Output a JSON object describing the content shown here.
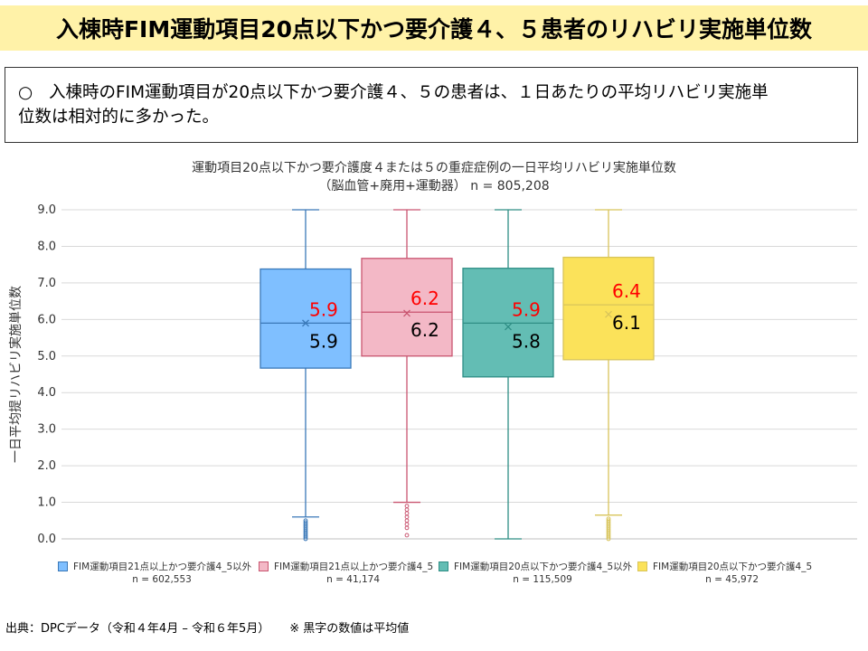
{
  "slide": {
    "title": "入棟時FIM運動項目20点以下かつ要介護４、５患者のリハビリ実施単位数",
    "summary_bullet": "○",
    "summary_line1": "入棟時のFIM運動項目が20点以下かつ要介護４、５の患者は、１日あたりの平均リハビリ実施単",
    "summary_line2": "位数は相対的に多かった。",
    "footer_source": "出典：DPCデータ（令和４年4月 – 令和６年5月）",
    "footer_note": "※ 黒字の数値は平均値"
  },
  "chart_data": {
    "type": "boxplot",
    "title_line1": "運動項目20点以下かつ要介護度４または５の重症症例の一日平均リハビリ実施単位数",
    "title_line2": "（脳血管+廃用+運動器） n = 805,208",
    "ylabel": "一日平均提リハビリ実施単位数",
    "ylim": [
      0,
      9
    ],
    "yticks": [
      "0.0",
      "1.0",
      "2.0",
      "3.0",
      "4.0",
      "5.0",
      "6.0",
      "7.0",
      "8.0",
      "9.0"
    ],
    "grid": true,
    "legend_position": "bottom",
    "series": [
      {
        "name": "FIM運動項目21点以上かつ要介護4_5以外",
        "n_label": "n = 602,553",
        "color": "#7fbfff",
        "stroke": "#3a78b8",
        "whisker_low": 0.6,
        "q1": 4.67,
        "median": 5.9,
        "q3": 7.38,
        "whisker_high": 9.0,
        "mean": 5.9,
        "median_label": "5.9",
        "mean_label": "5.9",
        "outliers": [
          0.0,
          0.05,
          0.1,
          0.15,
          0.2,
          0.25,
          0.3,
          0.35,
          0.4,
          0.45,
          0.5
        ]
      },
      {
        "name": "FIM運動項目21点以上かつ要介護4_5",
        "n_label": "n = 41,174",
        "color": "#f3b8c6",
        "stroke": "#c95570",
        "whisker_low": 1.0,
        "q1": 5.0,
        "median": 6.2,
        "q3": 7.67,
        "whisker_high": 9.0,
        "mean": 6.17,
        "median_label": "6.2",
        "mean_label": "6.2",
        "outliers": [
          0.1,
          0.3,
          0.4,
          0.5,
          0.6,
          0.7,
          0.8,
          0.9
        ]
      },
      {
        "name": "FIM運動項目20点以下かつ要介護4_5以外",
        "n_label": "n = 115,509",
        "color": "#63bdb4",
        "stroke": "#2f8e85",
        "whisker_low": 0.0,
        "q1": 4.43,
        "median": 5.9,
        "q3": 7.4,
        "whisker_high": 9.0,
        "mean": 5.8,
        "median_label": "5.9",
        "mean_label": "5.8",
        "outliers": []
      },
      {
        "name": "FIM運動項目20点以下かつ要介護4_5",
        "n_label": "n = 45,972",
        "color": "#fbe25a",
        "stroke": "#d8c45a",
        "whisker_low": 0.65,
        "q1": 4.9,
        "median": 6.4,
        "q3": 7.7,
        "whisker_high": 9.0,
        "mean": 6.14,
        "median_label": "6.4",
        "mean_label": "6.1",
        "outliers": [
          0.0,
          0.05,
          0.1,
          0.15,
          0.2,
          0.25,
          0.3,
          0.35,
          0.4,
          0.45,
          0.5,
          0.55
        ]
      }
    ],
    "median_label_color": "#ff0000",
    "mean_label_color": "#000000"
  }
}
